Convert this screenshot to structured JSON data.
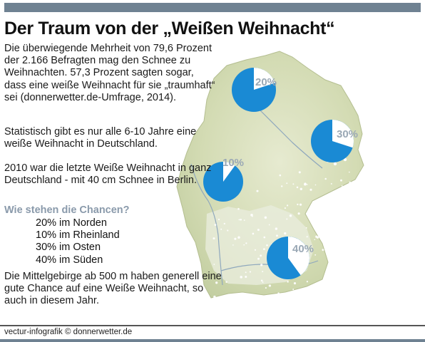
{
  "title": "Der Traum von der „Weißen Weihnacht“",
  "intro": "Die überwiegende Mehrheit von 79,6 Prozent der 2.166 Befragten mag den Schnee zu Weihnachten. 57,3 Prozent sagten sogar, dass eine weiße Weihnacht für sie „traumhaft“ sei (donnerwetter.de-Umfrage, 2014).",
  "statistic": "Statistisch gibt es nur alle 6-10 Jahre eine weiße Weihnacht in Deutschland.",
  "last_snow": "2010 war die letzte Weiße Weihnacht in ganz Deutschland - mit 40 cm Schnee in Berlin.",
  "question": "Wie stehen die Chancen?",
  "chances": [
    "20% im Norden",
    "10% im Rheinland",
    "30% im Osten",
    "40% im Süden"
  ],
  "outro": "Die Mittelgebirge ab 500 m haben generell eine gute Chance auf eine Weiße Weihnacht, so auch in diesem Jahr.",
  "footer": "vectur-infografik © donnerwetter.de",
  "colors": {
    "header_bar": "#6f8292",
    "pie_fill": "#1a8ad4",
    "pie_rest": "#ffffff",
    "map_fill": "#cfd8b0",
    "percent_label": "#9aa8b5",
    "question": "#8a9aab"
  },
  "chart_data": {
    "type": "pie",
    "unit": "%",
    "series": [
      {
        "name": "Norden",
        "value": 20,
        "label": "20%"
      },
      {
        "name": "Rheinland",
        "value": 10,
        "label": "10%"
      },
      {
        "name": "Osten",
        "value": 30,
        "label": "30%"
      },
      {
        "name": "Süden",
        "value": 40,
        "label": "40%"
      }
    ]
  }
}
